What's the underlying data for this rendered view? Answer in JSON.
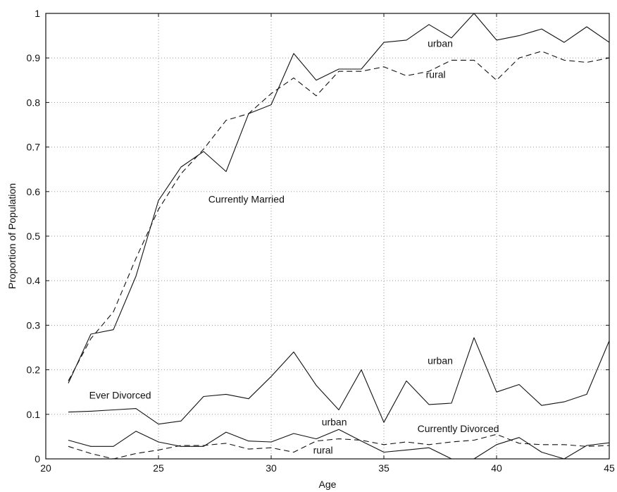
{
  "chart_data": {
    "type": "line",
    "xlabel": "Age",
    "ylabel": "Proportion of Population",
    "xlim": [
      20,
      45
    ],
    "ylim": [
      0,
      1
    ],
    "grid": true,
    "x_ticks": [
      20,
      25,
      30,
      35,
      40,
      45
    ],
    "x_tick_labels": [
      "20",
      "25",
      "30",
      "35",
      "40",
      "45"
    ],
    "y_ticks": [
      0,
      0.1,
      0.2,
      0.3,
      0.4,
      0.5,
      0.6,
      0.7,
      0.8,
      0.9,
      1
    ],
    "y_tick_labels": [
      "0",
      "0.1",
      "0.2",
      "0.3",
      "0.4",
      "0.5",
      "0.6",
      "0.7",
      "0.8",
      "0.9",
      "1"
    ],
    "x": [
      21,
      22,
      23,
      24,
      25,
      26,
      27,
      28,
      29,
      30,
      31,
      32,
      33,
      34,
      35,
      36,
      37,
      38,
      39,
      40,
      41,
      42,
      43,
      44,
      45
    ],
    "series": [
      {
        "line": "solid",
        "values": [
          0.17,
          0.28,
          0.29,
          0.41,
          0.58,
          0.655,
          0.69,
          0.645,
          0.775,
          0.795,
          0.91,
          0.85,
          0.875,
          0.875,
          0.935,
          0.94,
          0.975,
          0.945,
          1.0,
          0.94,
          0.95,
          0.965,
          0.935,
          0.97,
          0.935
        ]
      },
      {
        "line": "dashed",
        "values": [
          0.175,
          0.27,
          0.33,
          0.45,
          0.56,
          0.64,
          0.695,
          0.76,
          0.775,
          0.82,
          0.855,
          0.815,
          0.87,
          0.87,
          0.88,
          0.86,
          0.87,
          0.895,
          0.895,
          0.85,
          0.9,
          0.915,
          0.895,
          0.89,
          0.9
        ]
      },
      {
        "line": "solid",
        "values": [
          0.105,
          0.107,
          0.11,
          0.113,
          0.078,
          0.085,
          0.14,
          0.145,
          0.135,
          0.185,
          0.24,
          0.165,
          0.11,
          0.2,
          0.082,
          0.175,
          0.122,
          0.125,
          0.272,
          0.15,
          0.167,
          0.12,
          0.128,
          0.145,
          0.265
        ]
      },
      {
        "line": "solid",
        "values": [
          0.042,
          0.028,
          0.028,
          0.062,
          0.038,
          0.028,
          0.028,
          0.06,
          0.04,
          0.038,
          0.057,
          0.045,
          0.066,
          0.04,
          0.015,
          0.02,
          0.025,
          0.0,
          0.0,
          0.032,
          0.048,
          0.015,
          0.0,
          0.03,
          0.036
        ]
      },
      {
        "line": "dashed",
        "values": [
          0.028,
          0.012,
          0.0,
          0.012,
          0.02,
          0.03,
          0.03,
          0.035,
          0.022,
          0.025,
          0.015,
          0.04,
          0.045,
          0.042,
          0.032,
          0.038,
          0.032,
          0.038,
          0.042,
          0.055,
          0.035,
          0.032,
          0.032,
          0.028,
          0.03
        ]
      }
    ],
    "annotations": [
      {
        "text": "urban",
        "x": 37.5,
        "y": 0.925
      },
      {
        "text": "rural",
        "x": 37.3,
        "y": 0.855
      },
      {
        "text": "Currently Married",
        "x": 28.9,
        "y": 0.575
      },
      {
        "text": "urban",
        "x": 37.5,
        "y": 0.213
      },
      {
        "text": "Ever Divorced",
        "x": 23.3,
        "y": 0.135
      },
      {
        "text": "urban",
        "x": 32.8,
        "y": 0.075
      },
      {
        "text": "Currently Divorced",
        "x": 38.3,
        "y": 0.06
      },
      {
        "text": "rural",
        "x": 32.3,
        "y": 0.012
      }
    ]
  }
}
